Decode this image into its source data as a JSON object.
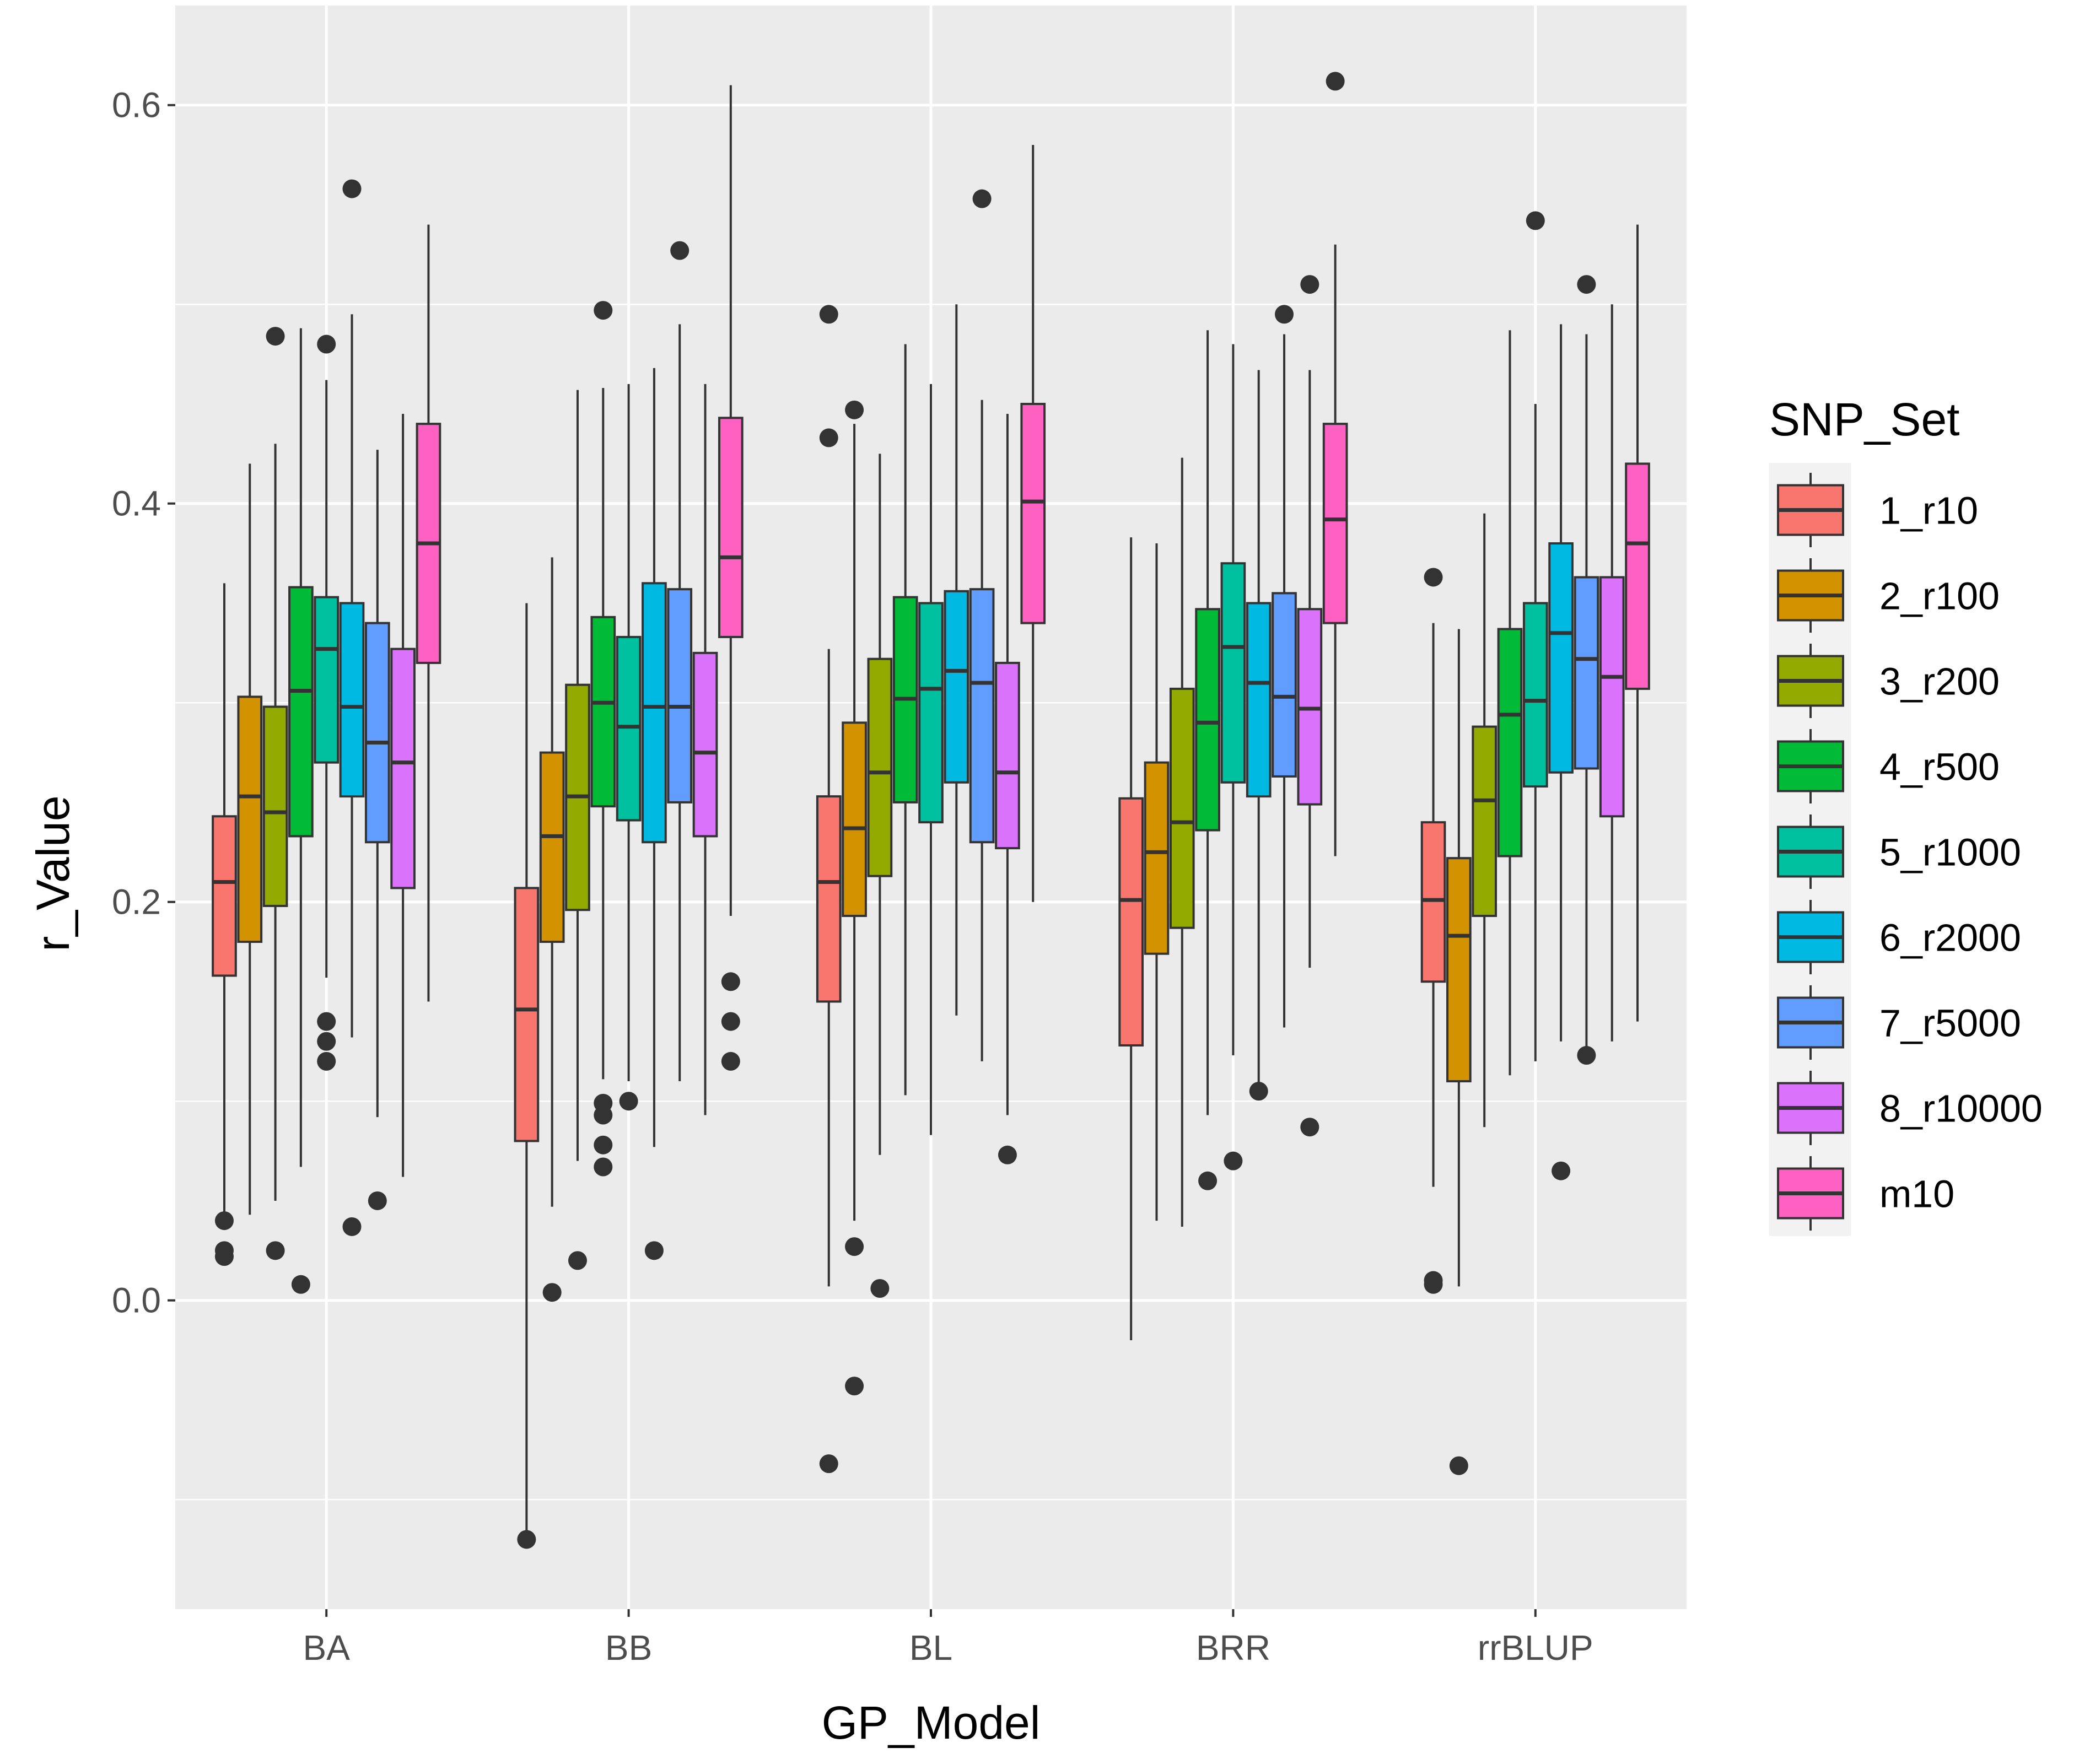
{
  "chart_data": {
    "type": "boxplot",
    "xlabel": "GP_Model",
    "ylabel": "r_Value",
    "ylim": [
      -0.155,
      0.65
    ],
    "y_ticks": [
      0.0,
      0.2,
      0.4,
      0.6
    ],
    "y_tick_labels": [
      "0.0",
      "0.2",
      "0.4",
      "0.6"
    ],
    "categories": [
      "BA",
      "BB",
      "BL",
      "BRR",
      "rrBLUP"
    ],
    "legend": {
      "title": "SNP_Set",
      "position": "right",
      "entries": [
        "1_r10",
        "2_r100",
        "3_r200",
        "4_r500",
        "5_r1000",
        "6_r2000",
        "7_r5000",
        "8_r10000",
        "m10"
      ]
    },
    "colors": [
      "#F8766D",
      "#D39200",
      "#93AA00",
      "#00BA38",
      "#00C19F",
      "#00B9E3",
      "#619CFF",
      "#DB72FB",
      "#FF61C3"
    ],
    "boxes": {
      "BA": [
        {
          "min": 0.04,
          "q1": 0.163,
          "median": 0.21,
          "q3": 0.243,
          "max": 0.36,
          "outliers": [
            0.04,
            0.025,
            0.022
          ]
        },
        {
          "min": 0.043,
          "q1": 0.18,
          "median": 0.253,
          "q3": 0.303,
          "max": 0.42,
          "outliers": []
        },
        {
          "min": 0.05,
          "q1": 0.198,
          "median": 0.245,
          "q3": 0.298,
          "max": 0.43,
          "outliers": [
            0.484,
            0.025
          ]
        },
        {
          "min": 0.067,
          "q1": 0.233,
          "median": 0.306,
          "q3": 0.358,
          "max": 0.488,
          "outliers": [
            0.008
          ]
        },
        {
          "min": 0.162,
          "q1": 0.27,
          "median": 0.327,
          "q3": 0.353,
          "max": 0.462,
          "outliers": [
            0.48,
            0.14,
            0.13,
            0.12
          ]
        },
        {
          "min": 0.132,
          "q1": 0.253,
          "median": 0.298,
          "q3": 0.35,
          "max": 0.495,
          "outliers": [
            0.558,
            0.037
          ]
        },
        {
          "min": 0.092,
          "q1": 0.23,
          "median": 0.28,
          "q3": 0.34,
          "max": 0.427,
          "outliers": [
            0.05
          ]
        },
        {
          "min": 0.062,
          "q1": 0.207,
          "median": 0.27,
          "q3": 0.327,
          "max": 0.445,
          "outliers": []
        },
        {
          "min": 0.15,
          "q1": 0.32,
          "median": 0.38,
          "q3": 0.44,
          "max": 0.54,
          "outliers": []
        }
      ],
      "BB": [
        {
          "min": -0.12,
          "q1": 0.08,
          "median": 0.146,
          "q3": 0.207,
          "max": 0.35,
          "outliers": [
            -0.12
          ]
        },
        {
          "min": 0.047,
          "q1": 0.18,
          "median": 0.233,
          "q3": 0.275,
          "max": 0.373,
          "outliers": [
            0.004
          ]
        },
        {
          "min": 0.07,
          "q1": 0.196,
          "median": 0.253,
          "q3": 0.309,
          "max": 0.457,
          "outliers": [
            0.02
          ]
        },
        {
          "min": 0.111,
          "q1": 0.248,
          "median": 0.3,
          "q3": 0.343,
          "max": 0.458,
          "outliers": [
            0.497,
            0.099,
            0.093,
            0.078,
            0.067
          ]
        },
        {
          "min": 0.11,
          "q1": 0.241,
          "median": 0.288,
          "q3": 0.333,
          "max": 0.46,
          "outliers": [
            0.1
          ]
        },
        {
          "min": 0.077,
          "q1": 0.23,
          "median": 0.298,
          "q3": 0.36,
          "max": 0.468,
          "outliers": [
            0.025
          ]
        },
        {
          "min": 0.11,
          "q1": 0.25,
          "median": 0.298,
          "q3": 0.357,
          "max": 0.49,
          "outliers": [
            0.527
          ]
        },
        {
          "min": 0.093,
          "q1": 0.233,
          "median": 0.275,
          "q3": 0.325,
          "max": 0.46,
          "outliers": []
        },
        {
          "min": 0.193,
          "q1": 0.333,
          "median": 0.373,
          "q3": 0.443,
          "max": 0.61,
          "outliers": [
            0.16,
            0.14,
            0.12
          ]
        }
      ],
      "BL": [
        {
          "min": 0.007,
          "q1": 0.15,
          "median": 0.21,
          "q3": 0.253,
          "max": 0.327,
          "outliers": [
            0.495,
            0.433,
            -0.082
          ]
        },
        {
          "min": 0.04,
          "q1": 0.193,
          "median": 0.237,
          "q3": 0.29,
          "max": 0.44,
          "outliers": [
            0.447,
            0.027,
            -0.043
          ]
        },
        {
          "min": 0.073,
          "q1": 0.213,
          "median": 0.265,
          "q3": 0.322,
          "max": 0.425,
          "outliers": [
            0.006
          ]
        },
        {
          "min": 0.103,
          "q1": 0.25,
          "median": 0.302,
          "q3": 0.353,
          "max": 0.48,
          "outliers": []
        },
        {
          "min": 0.083,
          "q1": 0.24,
          "median": 0.307,
          "q3": 0.35,
          "max": 0.46,
          "outliers": []
        },
        {
          "min": 0.143,
          "q1": 0.26,
          "median": 0.316,
          "q3": 0.356,
          "max": 0.5,
          "outliers": []
        },
        {
          "min": 0.12,
          "q1": 0.23,
          "median": 0.31,
          "q3": 0.357,
          "max": 0.452,
          "outliers": [
            0.553
          ]
        },
        {
          "min": 0.093,
          "q1": 0.227,
          "median": 0.265,
          "q3": 0.32,
          "max": 0.445,
          "outliers": [
            0.073
          ]
        },
        {
          "min": 0.2,
          "q1": 0.34,
          "median": 0.401,
          "q3": 0.45,
          "max": 0.58,
          "outliers": []
        }
      ],
      "BRR": [
        {
          "min": -0.02,
          "q1": 0.128,
          "median": 0.201,
          "q3": 0.252,
          "max": 0.383,
          "outliers": []
        },
        {
          "min": 0.04,
          "q1": 0.174,
          "median": 0.225,
          "q3": 0.27,
          "max": 0.38,
          "outliers": []
        },
        {
          "min": 0.037,
          "q1": 0.187,
          "median": 0.24,
          "q3": 0.307,
          "max": 0.423,
          "outliers": []
        },
        {
          "min": 0.093,
          "q1": 0.236,
          "median": 0.29,
          "q3": 0.347,
          "max": 0.487,
          "outliers": [
            0.06
          ]
        },
        {
          "min": 0.123,
          "q1": 0.26,
          "median": 0.328,
          "q3": 0.37,
          "max": 0.48,
          "outliers": [
            0.07
          ]
        },
        {
          "min": 0.103,
          "q1": 0.253,
          "median": 0.31,
          "q3": 0.35,
          "max": 0.467,
          "outliers": [
            0.105
          ]
        },
        {
          "min": 0.137,
          "q1": 0.263,
          "median": 0.303,
          "q3": 0.355,
          "max": 0.485,
          "outliers": [
            0.495
          ]
        },
        {
          "min": 0.167,
          "q1": 0.249,
          "median": 0.297,
          "q3": 0.347,
          "max": 0.467,
          "outliers": [
            0.51,
            0.087
          ]
        },
        {
          "min": 0.223,
          "q1": 0.34,
          "median": 0.392,
          "q3": 0.44,
          "max": 0.53,
          "outliers": [
            0.612
          ]
        }
      ],
      "rrBLUP": [
        {
          "min": 0.057,
          "q1": 0.16,
          "median": 0.201,
          "q3": 0.24,
          "max": 0.34,
          "outliers": [
            0.363,
            0.01,
            0.008
          ]
        },
        {
          "min": 0.007,
          "q1": 0.11,
          "median": 0.183,
          "q3": 0.222,
          "max": 0.337,
          "outliers": [
            -0.083
          ]
        },
        {
          "min": 0.087,
          "q1": 0.193,
          "median": 0.251,
          "q3": 0.288,
          "max": 0.395,
          "outliers": []
        },
        {
          "min": 0.113,
          "q1": 0.223,
          "median": 0.294,
          "q3": 0.337,
          "max": 0.487,
          "outliers": []
        },
        {
          "min": 0.12,
          "q1": 0.258,
          "median": 0.301,
          "q3": 0.35,
          "max": 0.45,
          "outliers": [
            0.542
          ]
        },
        {
          "min": 0.13,
          "q1": 0.265,
          "median": 0.335,
          "q3": 0.38,
          "max": 0.49,
          "outliers": [
            0.065
          ]
        },
        {
          "min": 0.12,
          "q1": 0.267,
          "median": 0.322,
          "q3": 0.363,
          "max": 0.485,
          "outliers": [
            0.51,
            0.123
          ]
        },
        {
          "min": 0.13,
          "q1": 0.243,
          "median": 0.313,
          "q3": 0.363,
          "max": 0.5,
          "outliers": []
        },
        {
          "min": 0.14,
          "q1": 0.307,
          "median": 0.38,
          "q3": 0.42,
          "max": 0.54,
          "outliers": []
        }
      ]
    }
  }
}
